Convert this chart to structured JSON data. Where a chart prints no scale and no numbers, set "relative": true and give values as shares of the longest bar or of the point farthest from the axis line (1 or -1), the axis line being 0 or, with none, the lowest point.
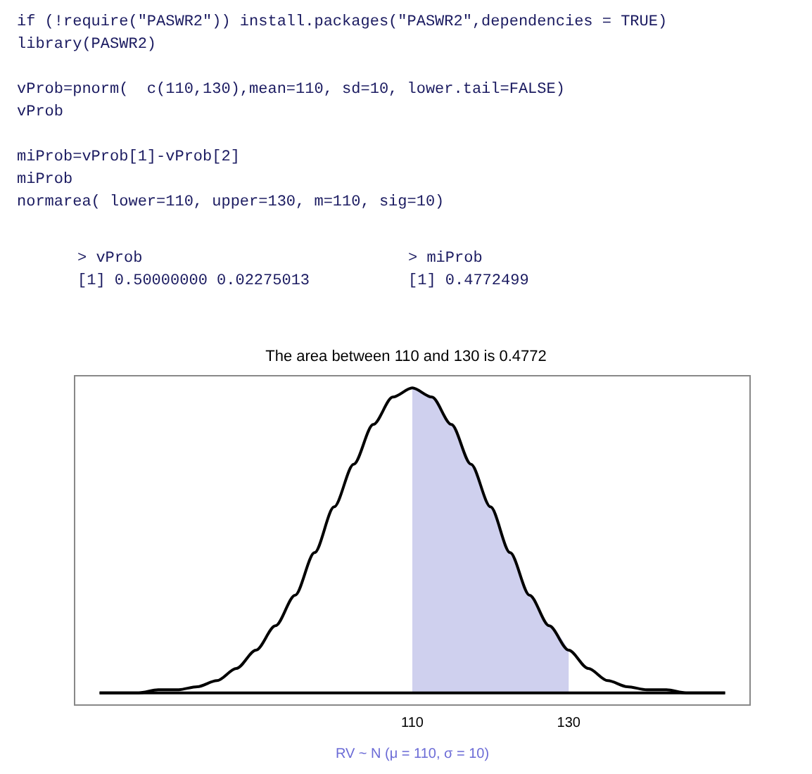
{
  "chart_data": {
    "type": "line",
    "title": "The area between 110 and 130 is 0.4772",
    "xlabel": "RV ~ N (μ = 110, σ = 10)",
    "annotations": [
      "if (!require(\"PASWR2\")) install.packages(\"PASWR2\",dependencies = TRUE)\nlibrary(PASWR2)\n\nvProb=pnorm(  c(110,130),mean=110, sd=10, lower.tail=FALSE)\nvProb\n\nmiProb=vProb[1]-vProb[2]\nmiProb\nnormarea( lower=110, upper=130, m=110, sig=10)",
      "> vProb\n[1] 0.50000000 0.02275013",
      "> miProb\n[1] 0.4772499"
    ],
    "relative": true,
    "marker": "none",
    "line_style": "solid",
    "xlim": [
      66.8,
      153.2
    ],
    "xticks": [
      110,
      130
    ],
    "x": [
      70,
      72.5,
      75,
      77.5,
      80,
      82.5,
      85,
      87.5,
      90,
      92.5,
      95,
      97.5,
      100,
      102.5,
      105,
      107.5,
      110,
      112.5,
      115,
      117.5,
      120,
      122.5,
      125,
      127.5,
      130,
      132.5,
      135,
      137.5,
      140,
      142.5,
      145,
      147.5,
      150
    ],
    "series": [
      {
        "type": "area",
        "color": "#cfd0ee",
        "x": [
          110,
          112.5,
          115,
          117.5,
          120,
          122.5,
          125,
          127.5,
          130
        ],
        "values": [
          1,
          0.97,
          0.88,
          0.75,
          0.61,
          0.46,
          0.32,
          0.22,
          0.14
        ]
      },
      {
        "color": "#000000",
        "values": [
          0,
          0,
          0,
          0.01,
          0.01,
          0.02,
          0.04,
          0.08,
          0.14,
          0.22,
          0.32,
          0.46,
          0.61,
          0.75,
          0.88,
          0.97,
          1,
          0.97,
          0.88,
          0.75,
          0.61,
          0.46,
          0.32,
          0.22,
          0.14,
          0.08,
          0.04,
          0.02,
          0.01,
          0.01,
          0,
          0,
          0
        ]
      }
    ]
  }
}
